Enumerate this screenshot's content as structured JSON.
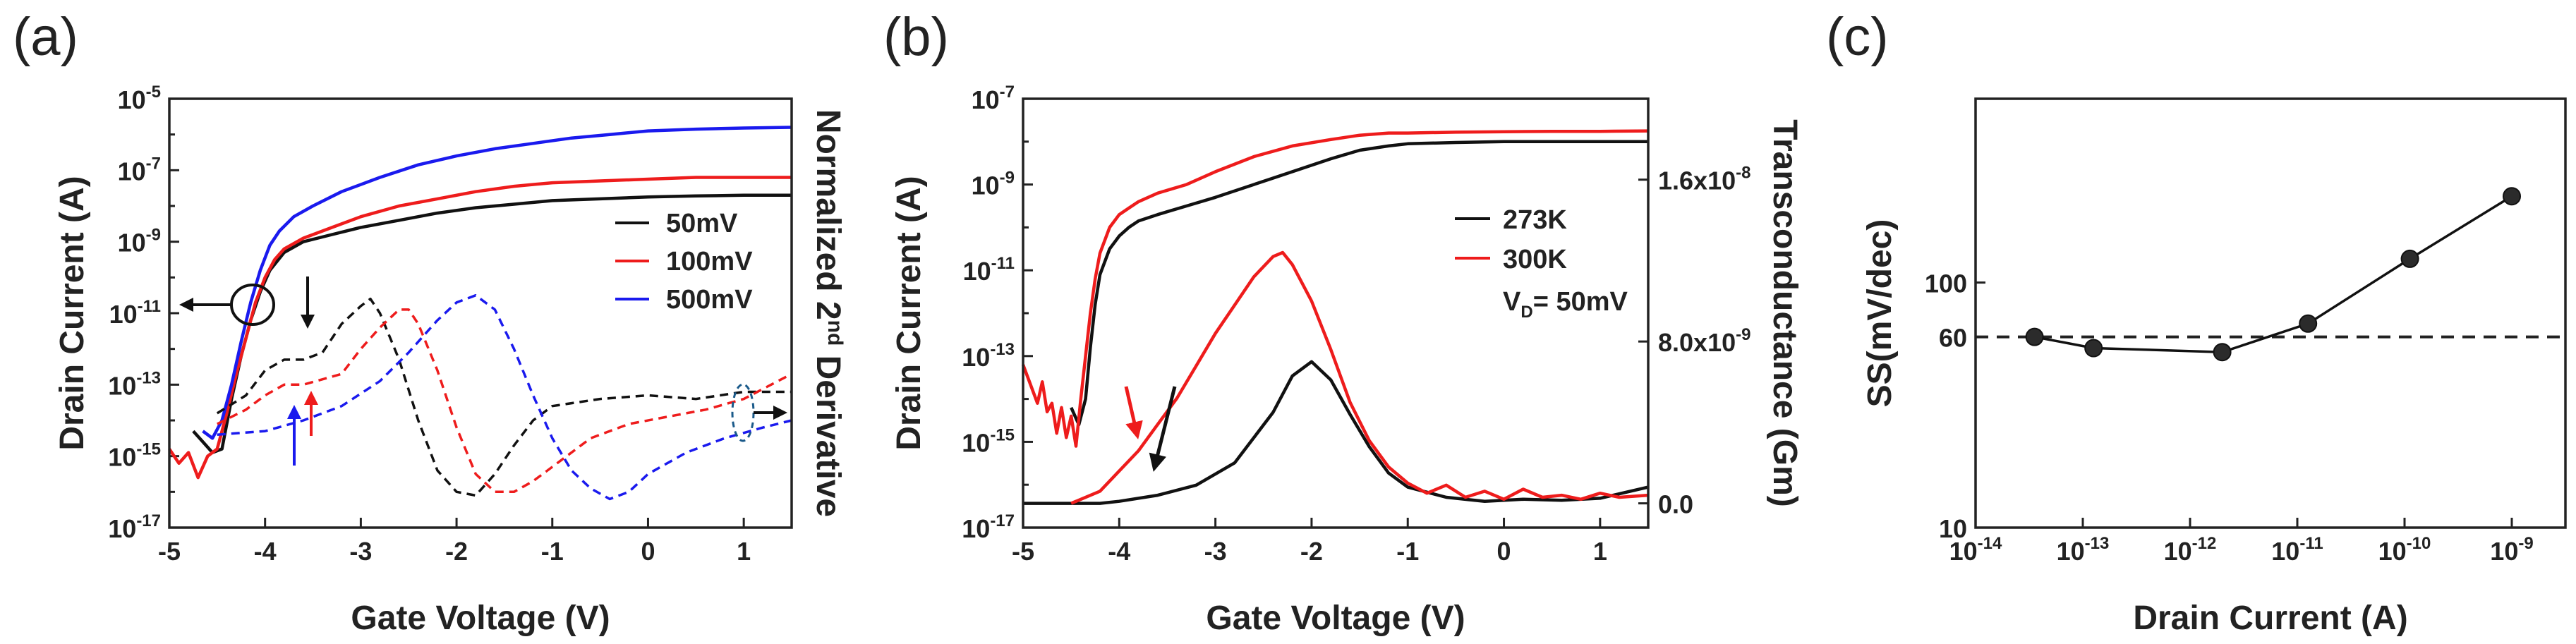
{
  "chart_data": [
    {
      "panel": "(a)",
      "type": "line",
      "xlabel": "Gate Voltage (V)",
      "ylabel": "Drain Current (A)",
      "y2label": "Normalized 2nd Derivative",
      "xlim": [
        -5,
        1.5
      ],
      "ylim_log10": [
        -17,
        -5
      ],
      "xticks": [
        "-5",
        "-4",
        "-3",
        "-2",
        "-1",
        "0",
        "1"
      ],
      "yticks": [
        {
          "base": "10",
          "exp": "-5"
        },
        {
          "base": "10",
          "exp": "-7"
        },
        {
          "base": "10",
          "exp": "-9"
        },
        {
          "base": "10",
          "exp": "-11"
        },
        {
          "base": "10",
          "exp": "-13"
        },
        {
          "base": "10",
          "exp": "-15"
        },
        {
          "base": "10",
          "exp": "-17"
        }
      ],
      "legend": [
        {
          "label": "50mV",
          "color": "#111111"
        },
        {
          "label": "100mV",
          "color": "#ee1c1c"
        },
        {
          "label": "500mV",
          "color": "#1a1aee"
        }
      ],
      "series": [
        {
          "name": "50mV",
          "style": "solid",
          "color": "#111111",
          "x": [
            -4.75,
            -4.65,
            -4.55,
            -4.45,
            -4.35,
            -4.25,
            -4.15,
            -4.05,
            -3.95,
            -3.8,
            -3.6,
            -3.3,
            -3.0,
            -2.6,
            -2.2,
            -1.8,
            -1.4,
            -1.0,
            -0.5,
            0,
            0.5,
            1.0,
            1.5
          ],
          "log10_y": [
            -14.3,
            -14.6,
            -14.9,
            -14.8,
            -13.4,
            -12.2,
            -11.2,
            -10.4,
            -9.8,
            -9.3,
            -9.0,
            -8.8,
            -8.6,
            -8.4,
            -8.2,
            -8.05,
            -7.95,
            -7.85,
            -7.8,
            -7.75,
            -7.72,
            -7.7,
            -7.7
          ]
        },
        {
          "name": "100mV",
          "style": "solid",
          "color": "#ee1c1c",
          "x": [
            -5.0,
            -4.9,
            -4.8,
            -4.7,
            -4.6,
            -4.5,
            -4.4,
            -4.3,
            -4.2,
            -4.1,
            -4.0,
            -3.9,
            -3.8,
            -3.6,
            -3.3,
            -3.0,
            -2.6,
            -2.2,
            -1.8,
            -1.4,
            -1.0,
            -0.5,
            0,
            0.5,
            1.0,
            1.5
          ],
          "log10_y": [
            -14.8,
            -15.2,
            -14.9,
            -15.6,
            -15.0,
            -14.8,
            -13.8,
            -12.7,
            -11.7,
            -10.7,
            -10.0,
            -9.5,
            -9.2,
            -8.9,
            -8.6,
            -8.3,
            -8.0,
            -7.8,
            -7.6,
            -7.45,
            -7.35,
            -7.3,
            -7.25,
            -7.2,
            -7.2,
            -7.2
          ]
        },
        {
          "name": "500mV",
          "style": "solid",
          "color": "#1a1aee",
          "x": [
            -4.65,
            -4.55,
            -4.45,
            -4.35,
            -4.25,
            -4.15,
            -4.05,
            -3.95,
            -3.85,
            -3.7,
            -3.5,
            -3.2,
            -2.8,
            -2.4,
            -2.0,
            -1.6,
            -1.2,
            -0.8,
            -0.4,
            0,
            0.5,
            1.0,
            1.5
          ],
          "log10_y": [
            -14.3,
            -14.5,
            -14.0,
            -13.0,
            -11.8,
            -10.7,
            -9.8,
            -9.1,
            -8.7,
            -8.3,
            -8.0,
            -7.6,
            -7.2,
            -6.85,
            -6.6,
            -6.4,
            -6.25,
            -6.1,
            -6.0,
            -5.9,
            -5.85,
            -5.82,
            -5.8
          ]
        },
        {
          "name": "50mV 2nd derivative",
          "style": "dashed",
          "color": "#111111",
          "x": [
            -4.5,
            -4.2,
            -4.0,
            -3.8,
            -3.6,
            -3.4,
            -3.2,
            -3.0,
            -2.9,
            -2.8,
            -2.6,
            -2.4,
            -2.2,
            -2.0,
            -1.8,
            -1.6,
            -1.4,
            -1.2,
            -1.0,
            -0.5,
            0,
            0.5,
            1.0,
            1.5
          ],
          "log10_y": [
            -13.8,
            -13.3,
            -12.6,
            -12.3,
            -12.3,
            -12.1,
            -11.3,
            -10.8,
            -10.6,
            -11.0,
            -12.3,
            -14.0,
            -15.4,
            -16.0,
            -16.1,
            -15.5,
            -14.7,
            -14.0,
            -13.6,
            -13.4,
            -13.3,
            -13.4,
            -13.2,
            -13.2
          ]
        },
        {
          "name": "100mV 2nd derivative",
          "style": "dashed",
          "color": "#ee1c1c",
          "x": [
            -4.5,
            -4.2,
            -4.0,
            -3.8,
            -3.6,
            -3.2,
            -3.0,
            -2.8,
            -2.6,
            -2.5,
            -2.4,
            -2.2,
            -2.0,
            -1.8,
            -1.6,
            -1.4,
            -1.2,
            -1.0,
            -0.6,
            -0.2,
            0.2,
            0.6,
            1.0,
            1.5
          ],
          "log10_y": [
            -14.1,
            -13.7,
            -13.3,
            -13.0,
            -13.0,
            -12.7,
            -12.0,
            -11.4,
            -10.9,
            -10.9,
            -11.3,
            -12.6,
            -14.2,
            -15.5,
            -16.0,
            -16.0,
            -15.7,
            -15.3,
            -14.5,
            -14.1,
            -13.9,
            -13.7,
            -13.4,
            -12.7
          ]
        },
        {
          "name": "500mV 2nd derivative",
          "style": "dashed",
          "color": "#1a1aee",
          "x": [
            -4.5,
            -4.0,
            -3.6,
            -3.2,
            -2.8,
            -2.5,
            -2.2,
            -2.0,
            -1.8,
            -1.6,
            -1.4,
            -1.2,
            -1.0,
            -0.8,
            -0.6,
            -0.4,
            -0.2,
            0,
            0.4,
            0.8,
            1.2,
            1.5
          ],
          "log10_y": [
            -14.4,
            -14.3,
            -14.0,
            -13.6,
            -12.9,
            -12.1,
            -11.2,
            -10.7,
            -10.5,
            -10.9,
            -12.0,
            -13.3,
            -14.5,
            -15.4,
            -15.9,
            -16.2,
            -16.0,
            -15.5,
            -14.9,
            -14.5,
            -14.2,
            -14.0
          ]
        }
      ],
      "annotations": [
        "circle around solid curves near -4.3 V with arrow pointing to left axis",
        "arrows marking kink positions (black, red, blue)",
        "dashed ellipse near 1 V with arrow pointing to right axis"
      ]
    },
    {
      "panel": "(b)",
      "type": "line",
      "xlabel": "Gate Voltage (V)",
      "ylabel": "Drain Current (A)",
      "y2label": "Transconductance (Gm)",
      "xlim": [
        -5,
        1.5
      ],
      "ylim_log10": [
        -17,
        -7
      ],
      "y2lim": [
        -1.2e-09,
        2e-08
      ],
      "xticks": [
        "-5",
        "-4",
        "-3",
        "-2",
        "-1",
        "0",
        "1"
      ],
      "yticks": [
        {
          "base": "10",
          "exp": "-7"
        },
        {
          "base": "10",
          "exp": "-9"
        },
        {
          "base": "10",
          "exp": "-11"
        },
        {
          "base": "10",
          "exp": "-13"
        },
        {
          "base": "10",
          "exp": "-15"
        },
        {
          "base": "10",
          "exp": "-17"
        }
      ],
      "y2ticks": [
        {
          "value": 1.6e-08,
          "base": "1.6x10",
          "exp": "-8"
        },
        {
          "value": 8e-09,
          "base": "8.0x10",
          "exp": "-9"
        },
        {
          "value": 0,
          "base": "0.0",
          "exp": ""
        }
      ],
      "legend": [
        {
          "label": "273K",
          "color": "#111111"
        },
        {
          "label": "300K",
          "color": "#ee1c1c"
        },
        {
          "label": "V",
          "sub": "D",
          "suffix": "= 50mV",
          "color": "#111111"
        }
      ],
      "series": [
        {
          "name": "273K Id",
          "axis": "left",
          "color": "#111111",
          "x": [
            -4.5,
            -4.42,
            -4.35,
            -4.3,
            -4.25,
            -4.2,
            -4.1,
            -4.0,
            -3.9,
            -3.8,
            -3.6,
            -3.3,
            -3.0,
            -2.6,
            -2.2,
            -1.8,
            -1.5,
            -1.2,
            -1.0,
            -0.5,
            0,
            0.5,
            1.0,
            1.5
          ],
          "log10_y": [
            -14.2,
            -14.6,
            -14.0,
            -12.8,
            -11.8,
            -11.1,
            -10.5,
            -10.2,
            -10.0,
            -9.85,
            -9.7,
            -9.5,
            -9.3,
            -9.0,
            -8.7,
            -8.4,
            -8.2,
            -8.1,
            -8.05,
            -8.02,
            -8.0,
            -8.0,
            -8.0,
            -8.0
          ]
        },
        {
          "name": "300K Id",
          "axis": "left",
          "color": "#ee1c1c",
          "x": [
            -5.0,
            -4.95,
            -4.9,
            -4.85,
            -4.8,
            -4.75,
            -4.7,
            -4.65,
            -4.6,
            -4.55,
            -4.5,
            -4.45,
            -4.4,
            -4.35,
            -4.3,
            -4.25,
            -4.2,
            -4.1,
            -4.0,
            -3.9,
            -3.8,
            -3.6,
            -3.3,
            -3.0,
            -2.6,
            -2.2,
            -1.8,
            -1.5,
            -1.2,
            -1.0,
            -0.5,
            0,
            0.5,
            1.0,
            1.5
          ],
          "log10_y": [
            -13.2,
            -13.5,
            -13.8,
            -14.1,
            -13.6,
            -14.3,
            -14.1,
            -14.8,
            -14.2,
            -14.9,
            -14.4,
            -15.1,
            -14.0,
            -13.0,
            -12.0,
            -11.2,
            -10.6,
            -10.0,
            -9.7,
            -9.55,
            -9.4,
            -9.2,
            -9.0,
            -8.7,
            -8.35,
            -8.1,
            -7.95,
            -7.85,
            -7.8,
            -7.8,
            -7.78,
            -7.77,
            -7.76,
            -7.76,
            -7.75
          ]
        },
        {
          "name": "273K Gm",
          "axis": "right",
          "color": "#111111",
          "x": [
            -5.0,
            -4.6,
            -4.2,
            -4.0,
            -3.6,
            -3.2,
            -2.8,
            -2.4,
            -2.2,
            -2.0,
            -1.8,
            -1.6,
            -1.4,
            -1.2,
            -1.0,
            -0.6,
            -0.2,
            0.2,
            0.6,
            1.0,
            1.5
          ],
          "y": [
            0,
            0,
            0,
            1e-10,
            4e-10,
            9e-10,
            2e-09,
            4.5e-09,
            6.3e-09,
            7e-09,
            6.1e-09,
            4.4e-09,
            2.8e-09,
            1.5e-09,
            8e-10,
            3e-10,
            1e-10,
            2e-10,
            1.5e-10,
            2.5e-10,
            8e-10
          ]
        },
        {
          "name": "300K Gm",
          "axis": "right",
          "color": "#ee1c1c",
          "x": [
            -4.5,
            -4.2,
            -4.0,
            -3.8,
            -3.6,
            -3.4,
            -3.2,
            -3.0,
            -2.8,
            -2.6,
            -2.4,
            -2.3,
            -2.2,
            -2.0,
            -1.8,
            -1.6,
            -1.4,
            -1.2,
            -1.0,
            -0.8,
            -0.6,
            -0.4,
            -0.2,
            0,
            0.2,
            0.4,
            0.6,
            0.8,
            1.0,
            1.2,
            1.5
          ],
          "y": [
            0,
            6e-10,
            1.6e-09,
            2.6e-09,
            3.9e-09,
            5.2e-09,
            6.8e-09,
            8.4e-09,
            9.8e-09,
            1.12e-08,
            1.22e-08,
            1.24e-08,
            1.18e-08,
            1e-08,
            7.6e-09,
            5e-09,
            3.1e-09,
            1.8e-09,
            1e-09,
            5e-10,
            9e-10,
            3e-10,
            6e-10,
            2e-10,
            7e-10,
            3e-10,
            4e-10,
            2e-10,
            5e-10,
            3e-10,
            4e-10
          ]
        }
      ],
      "annotations": [
        "red arrow near -3.9 V",
        "black arrow near -3.6 V"
      ]
    },
    {
      "panel": "(c)",
      "type": "scatter",
      "xlabel": "Drain Current (A)",
      "ylabel": "SS(mV/dec)",
      "xlim_log10": [
        -14,
        -8.5
      ],
      "ylim_log10": [
        1,
        2.75
      ],
      "xticks": [
        {
          "base": "10",
          "exp": "-14"
        },
        {
          "base": "10",
          "exp": "-13"
        },
        {
          "base": "10",
          "exp": "-12"
        },
        {
          "base": "10",
          "exp": "-11"
        },
        {
          "base": "10",
          "exp": "-10"
        },
        {
          "base": "10",
          "exp": "-9"
        }
      ],
      "yticks": [
        "10",
        "60",
        "100"
      ],
      "reference_line": {
        "value": 60,
        "style": "dashed"
      },
      "series": [
        {
          "name": "SS",
          "color": "#111111",
          "log10_x": [
            -13.45,
            -12.9,
            -11.7,
            -10.9,
            -9.95,
            -9.0
          ],
          "y": [
            60,
            54,
            52,
            68,
            125,
            225
          ]
        }
      ]
    }
  ]
}
